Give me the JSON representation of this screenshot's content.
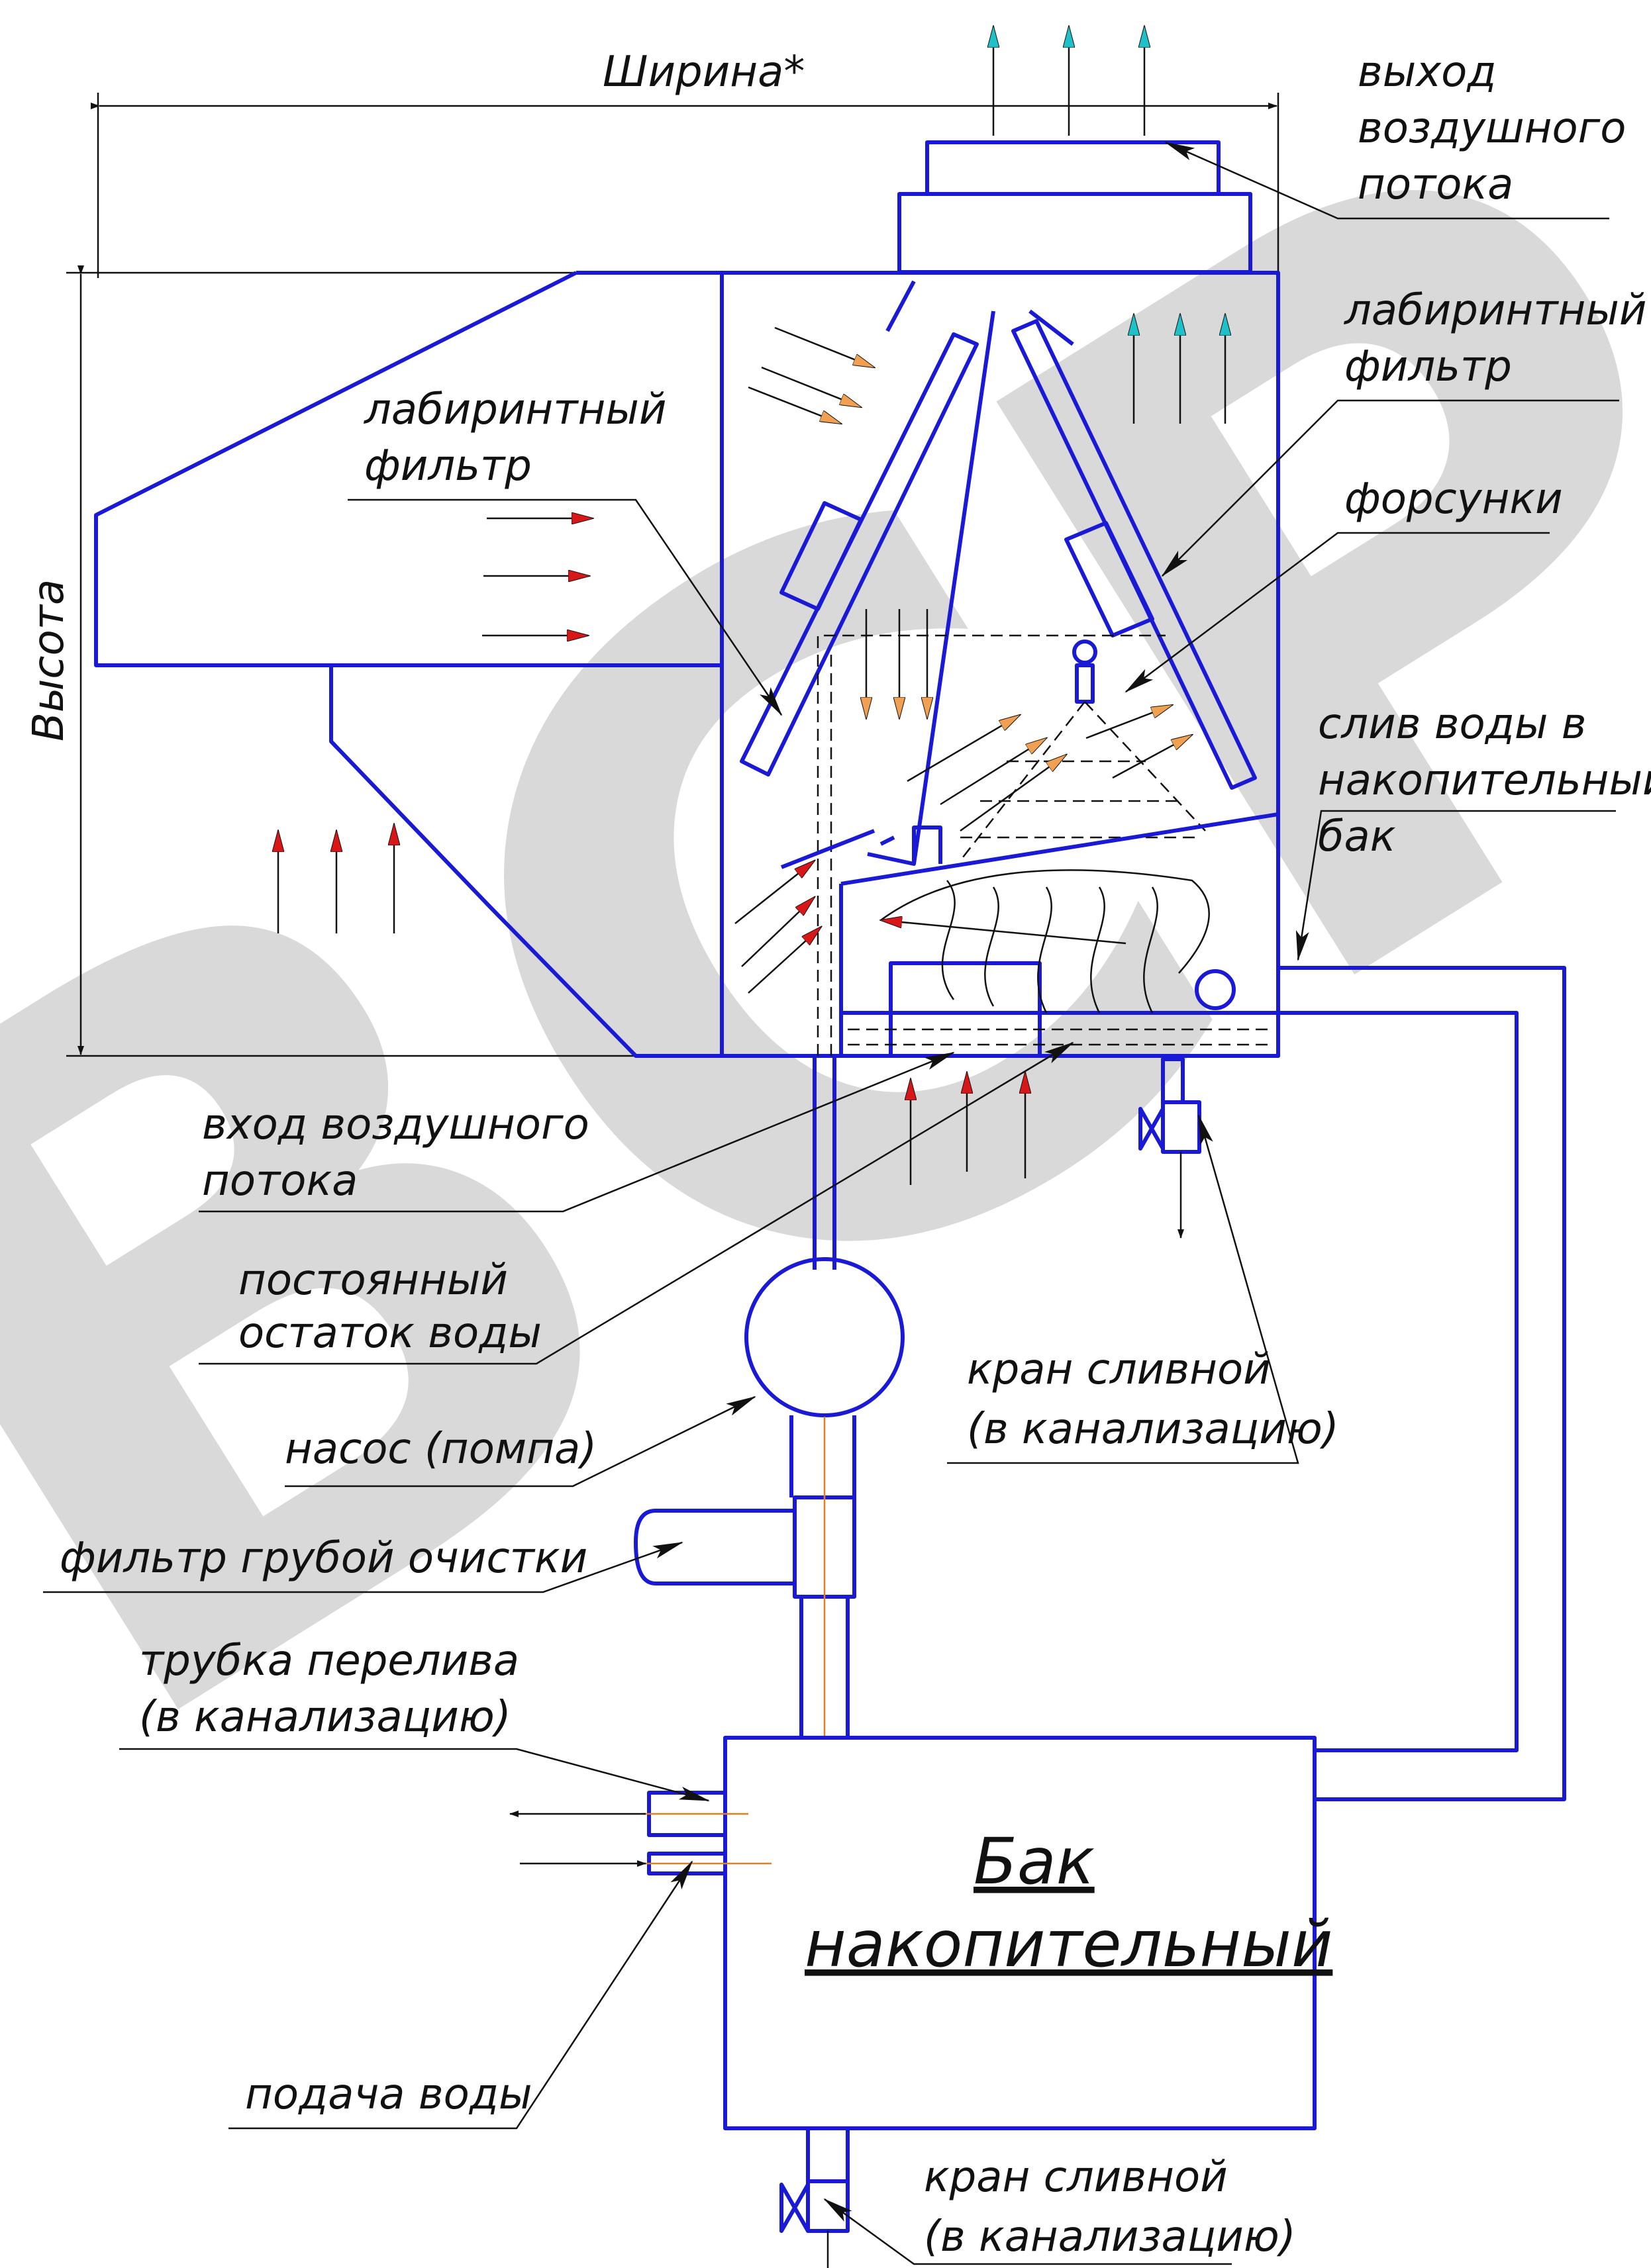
{
  "watermark": "ВСР",
  "dimensions": {
    "width": "Ширина*",
    "height": "Высота"
  },
  "labels": {
    "air_outlet": [
      "выход",
      "воздушного",
      "потока"
    ],
    "labyrinth_filter_right": [
      "лабиринтный",
      "фильтр"
    ],
    "labyrinth_filter_left": [
      "лабиринтный",
      "фильтр"
    ],
    "nozzles": "форсунки",
    "water_drain_tank": [
      "слив воды в",
      "накопительный",
      "бак"
    ],
    "air_inlet": [
      "вход воздушного",
      "потока"
    ],
    "permanent_water": [
      "постоянный",
      "остаток воды"
    ],
    "pump": "насос (помпа)",
    "coarse_filter": "фильтр грубой очистки",
    "drain_valve_top": [
      "кран сливной",
      "(в канализацию)"
    ],
    "overflow_pipe": [
      "трубка перелива",
      "(в канализацию)"
    ],
    "water_supply": "подача воды",
    "drain_valve_bottom": [
      "кран сливной",
      "(в канализацию)"
    ],
    "storage_tank": [
      "Бак",
      "накопительный"
    ]
  },
  "colors": {
    "outline": "#1a1ad6",
    "arrow_red": "#d81818",
    "arrow_orange": "#f0a050",
    "arrow_cyan": "#20c0c8",
    "watermark": "#d9d9d9"
  }
}
